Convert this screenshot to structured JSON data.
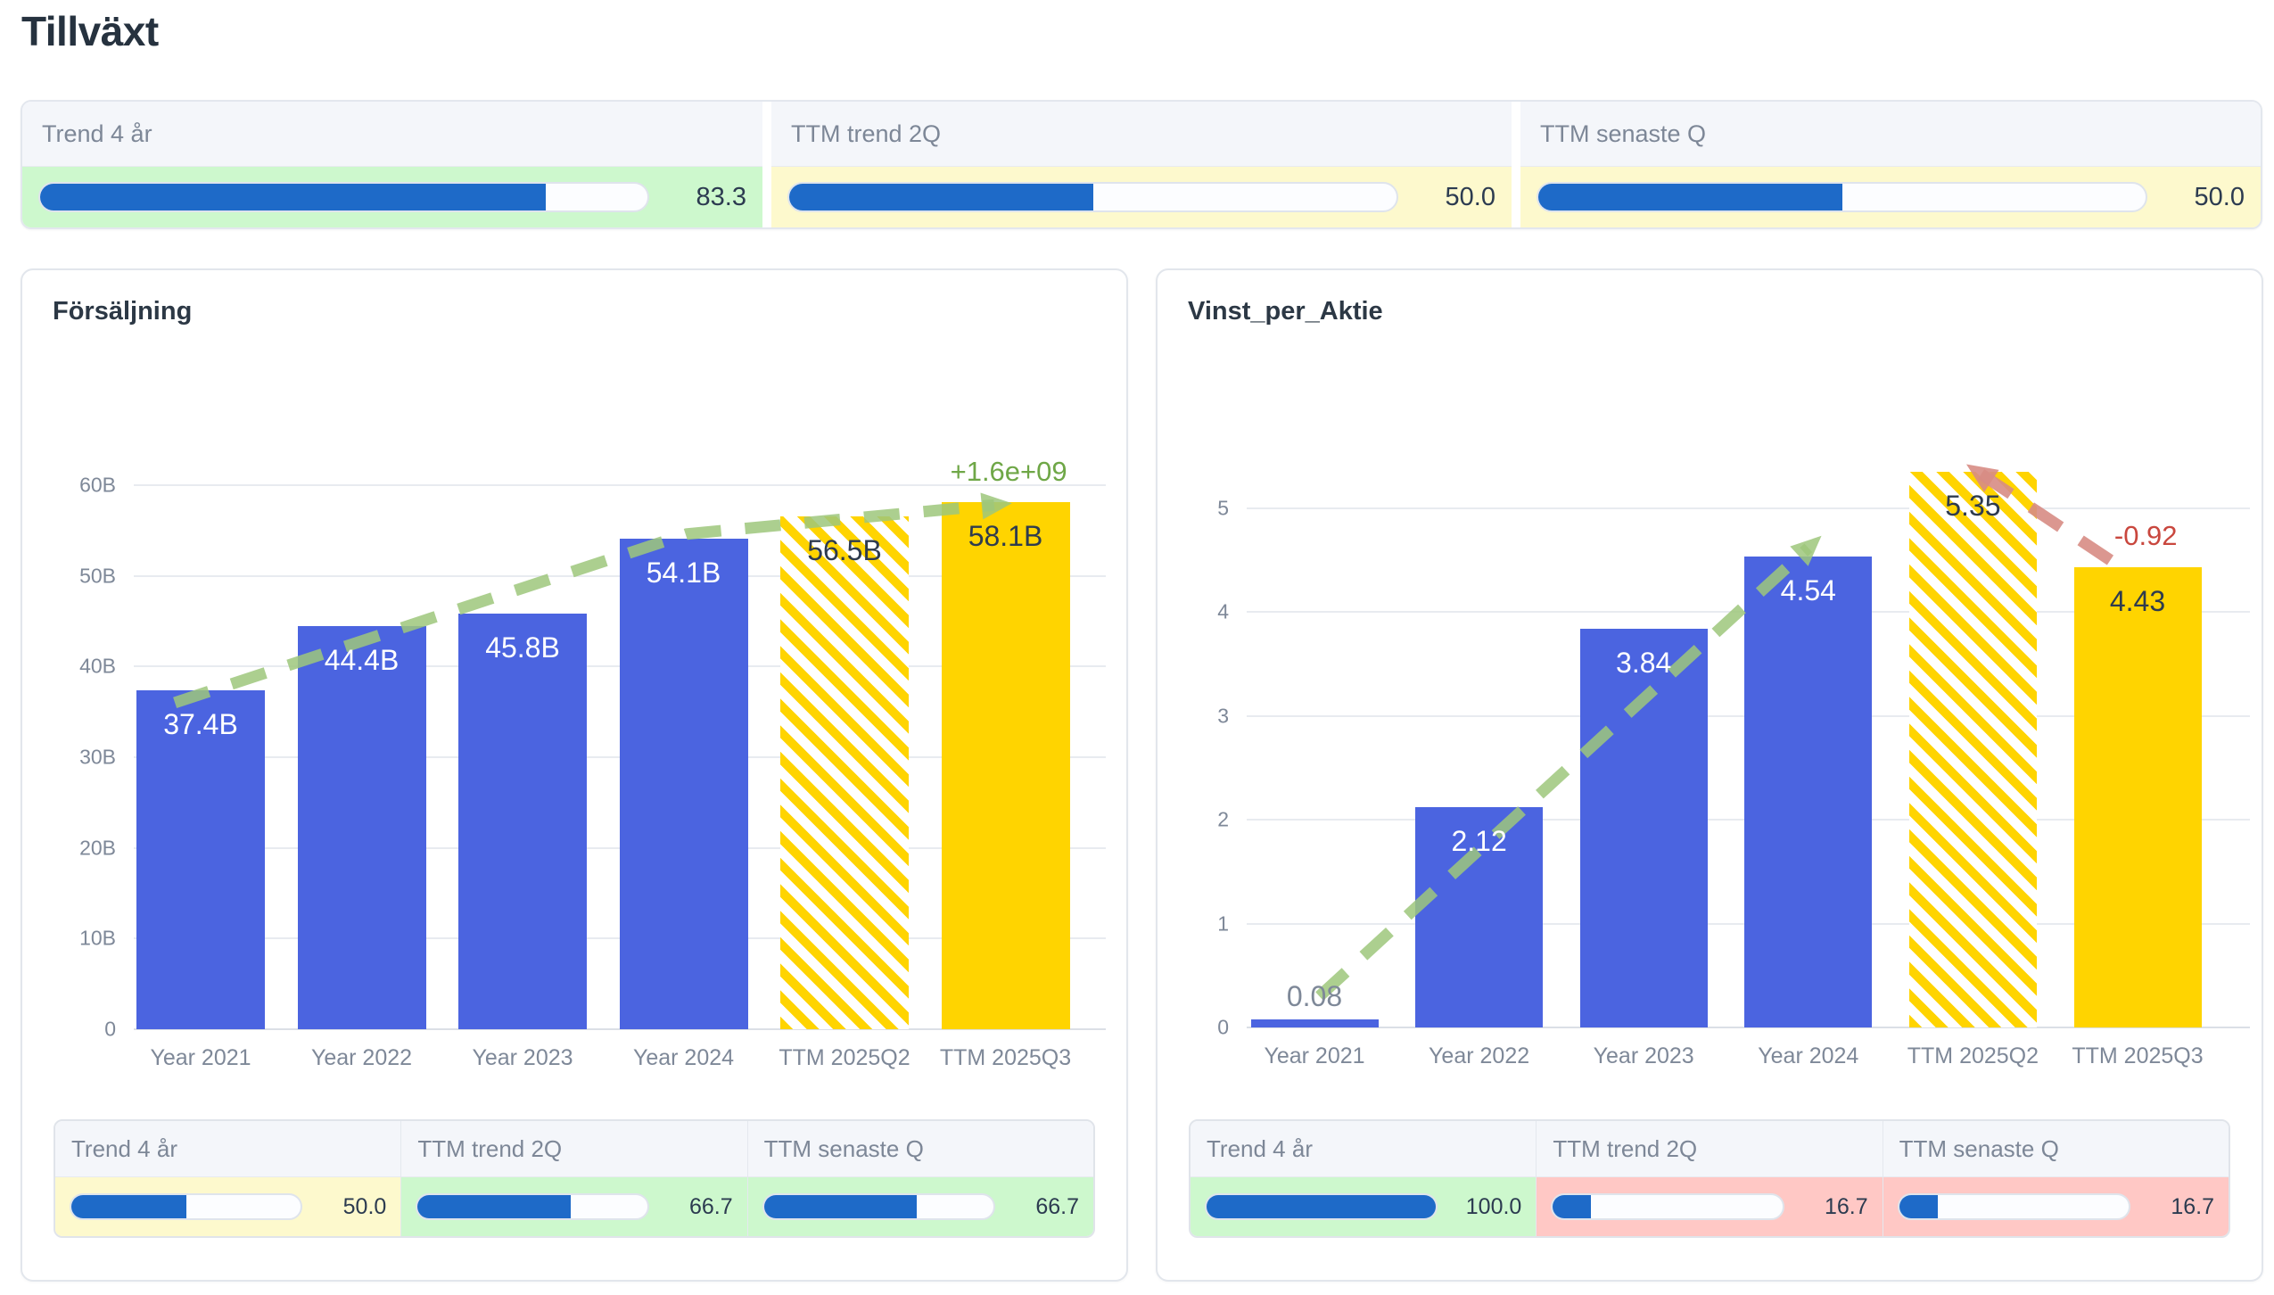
{
  "page": {
    "title": "Tillväxt"
  },
  "colors": {
    "bar_blue": "#4b64e0",
    "bar_gold": "#ffd400",
    "progress_fill": "#1e6ac8",
    "trend_green": "rgba(158,199,123,0.85)",
    "trend_red": "rgba(215,140,132,0.9)",
    "annotation_green": "#6fa747",
    "annotation_red": "#c9473e",
    "tone_green": "#cdf8cd",
    "tone_yellow": "#fdf9cd",
    "tone_red": "#ffc8c5"
  },
  "top_kpis": [
    {
      "label": "Trend 4 år",
      "value": "83.3",
      "pct": 83.3,
      "tone": "green"
    },
    {
      "label": "TTM trend 2Q",
      "value": "50.0",
      "pct": 50.0,
      "tone": "yellow"
    },
    {
      "label": "TTM senaste Q",
      "value": "50.0",
      "pct": 50.0,
      "tone": "yellow"
    }
  ],
  "charts": [
    {
      "title": "Försäljning",
      "chart_data": {
        "type": "bar",
        "categories": [
          "Year 2021",
          "Year 2022",
          "Year 2023",
          "Year 2024",
          "TTM 2025Q2",
          "TTM 2025Q3"
        ],
        "values": [
          37400000000,
          44400000000,
          45800000000,
          54100000000,
          56500000000,
          58100000000
        ],
        "bar_labels": [
          "37.4B",
          "44.4B",
          "45.8B",
          "54.1B",
          "56.5B",
          "58.1B"
        ],
        "bar_styles": [
          "blue",
          "blue",
          "blue",
          "blue",
          "hatch",
          "gold"
        ],
        "label_styles": [
          "in-light",
          "in-light",
          "in-light",
          "in-light",
          "in-dark",
          "in-dark"
        ],
        "yticks": [
          {
            "v": 0,
            "label": "0"
          },
          {
            "v": 10000000000,
            "label": "10B"
          },
          {
            "v": 20000000000,
            "label": "20B"
          },
          {
            "v": 30000000000,
            "label": "30B"
          },
          {
            "v": 40000000000,
            "label": "40B"
          },
          {
            "v": 50000000000,
            "label": "50B"
          },
          {
            "v": 60000000000,
            "label": "60B"
          }
        ],
        "ylim": [
          0,
          60000000000
        ],
        "grid": true,
        "annotations": [
          {
            "text": "+1.6e+09",
            "color": "#6fa747"
          }
        ],
        "trends": [
          {
            "name": "trend-line-up",
            "color": "rgba(158,199,123,0.85)"
          }
        ]
      },
      "kpis": [
        {
          "label": "Trend 4 år",
          "value": "50.0",
          "pct": 50.0,
          "tone": "yellow"
        },
        {
          "label": "TTM trend 2Q",
          "value": "66.7",
          "pct": 66.7,
          "tone": "green"
        },
        {
          "label": "TTM senaste Q",
          "value": "66.7",
          "pct": 66.7,
          "tone": "green"
        }
      ]
    },
    {
      "title": "Vinst_per_Aktie",
      "chart_data": {
        "type": "bar",
        "categories": [
          "Year 2021",
          "Year 2022",
          "Year 2023",
          "Year 2024",
          "TTM 2025Q2",
          "TTM 2025Q3"
        ],
        "values": [
          0.08,
          2.12,
          3.84,
          4.54,
          5.35,
          4.43
        ],
        "bar_labels": [
          "0.08",
          "2.12",
          "3.84",
          "4.54",
          "5.35",
          "4.43"
        ],
        "bar_styles": [
          "blue",
          "blue",
          "blue",
          "blue",
          "hatch",
          "gold"
        ],
        "label_styles": [
          "above-gray",
          "in-light",
          "in-light",
          "in-light",
          "in-dark",
          "in-dark"
        ],
        "yticks": [
          {
            "v": 0,
            "label": "0"
          },
          {
            "v": 1,
            "label": "1"
          },
          {
            "v": 2,
            "label": "2"
          },
          {
            "v": 3,
            "label": "3"
          },
          {
            "v": 4,
            "label": "4"
          },
          {
            "v": 5,
            "label": "5"
          }
        ],
        "ylim": [
          0,
          5
        ],
        "grid": true,
        "annotations": [
          {
            "text": "-0.92",
            "color": "#c9473e"
          }
        ],
        "trends": [
          {
            "name": "trend-line-up",
            "color": "rgba(158,199,123,0.85)"
          },
          {
            "name": "trend-line-down",
            "color": "rgba(215,140,132,0.9)"
          }
        ]
      },
      "kpis": [
        {
          "label": "Trend 4 år",
          "value": "100.0",
          "pct": 100.0,
          "tone": "green"
        },
        {
          "label": "TTM trend 2Q",
          "value": "16.7",
          "pct": 16.7,
          "tone": "red"
        },
        {
          "label": "TTM senaste Q",
          "value": "16.7",
          "pct": 16.7,
          "tone": "red"
        }
      ]
    }
  ]
}
